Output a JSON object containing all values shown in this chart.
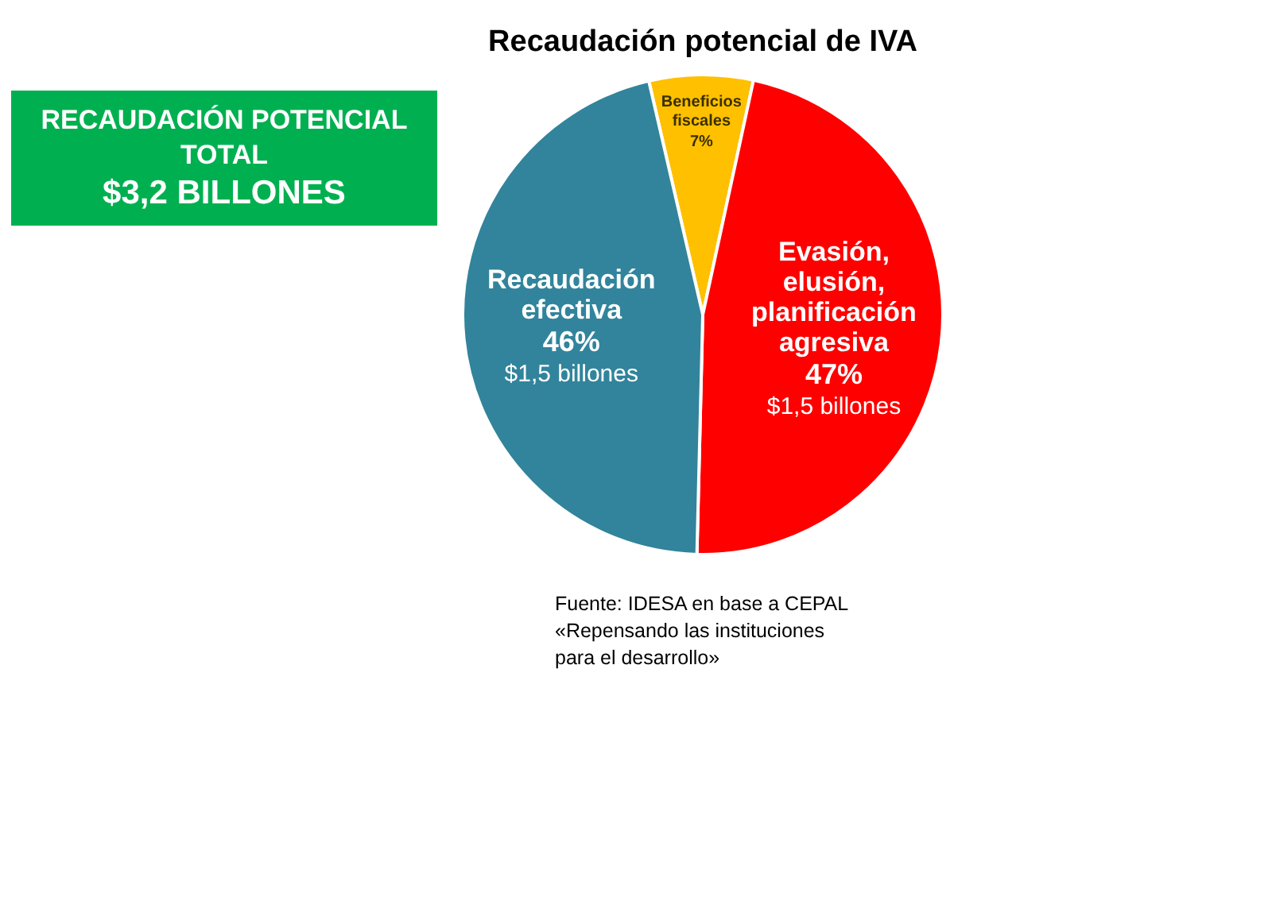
{
  "chart_data": {
    "type": "pie",
    "title": "Recaudación potencial de IVA",
    "categories": [
      "Beneficios fiscales",
      "Evasión, elusión, planificación agresiva",
      "Recaudación efectiva"
    ],
    "values": [
      7,
      47,
      46
    ],
    "colors": [
      "#ffc000",
      "#ff0000",
      "#31849b"
    ],
    "value_labels": [
      "7%",
      "47%",
      "46%"
    ],
    "legend": false,
    "annotations": [
      "RECAUDACIÓN POTENCIAL TOTAL",
      "$3,2 BILLONES",
      {
        "text": "$1,5 billones",
        "x": "Evasión, elusión, planificación agresiva"
      },
      {
        "text": "$1,5 billones",
        "x": "Recaudación efectiva"
      },
      "Fuente: IDESA en base a CEPAL «Repensando las instituciones para el desarrollo»"
    ]
  }
}
